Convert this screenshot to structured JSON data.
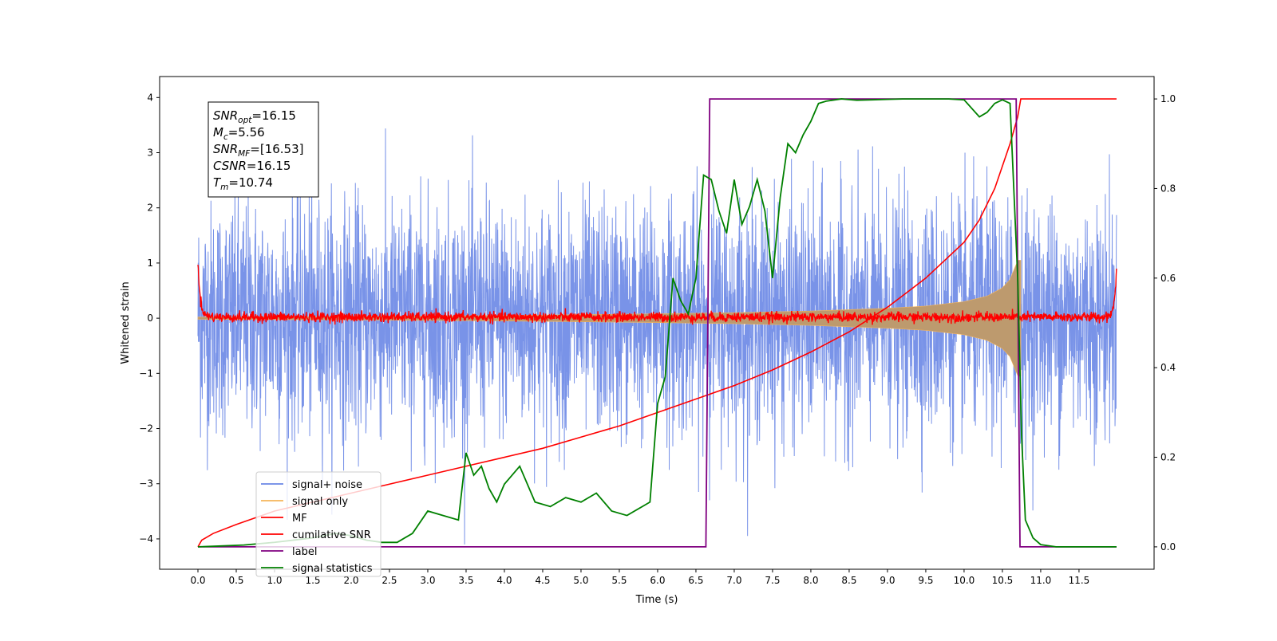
{
  "chart_data": {
    "type": "line",
    "xlabel": "Time (s)",
    "ylabel_left": "Whitened strain",
    "ylabel_right": "",
    "xlim": [
      -0.5,
      12.48
    ],
    "ylim_left": [
      -4.55,
      4.38
    ],
    "ylim_right": [
      -0.05,
      1.05
    ],
    "x_ticks": [
      "0.0",
      "0.5",
      "1.0",
      "1.5",
      "2.0",
      "2.5",
      "3.0",
      "3.5",
      "4.0",
      "4.5",
      "5.0",
      "5.5",
      "6.0",
      "6.5",
      "7.0",
      "7.5",
      "8.0",
      "8.5",
      "9.0",
      "9.5",
      "10.0",
      "10.5",
      "11.0",
      "11.5"
    ],
    "y_ticks_left": [
      "4",
      "3",
      "2",
      "1",
      "0",
      "−1",
      "−2",
      "−3",
      "−4"
    ],
    "y_ticks_right": [
      "1.0",
      "0.8",
      "0.6",
      "0.4",
      "0.2",
      "0.0"
    ],
    "info_box": [
      {
        "var": "SNR",
        "sub": "opt",
        "text": "=16.15"
      },
      {
        "var": "M",
        "sub": "c",
        "text": "=5.56"
      },
      {
        "var": "SNR",
        "sub": "MF",
        "text": "=[16.53]"
      },
      {
        "var": "CSNR",
        "sub": "",
        "text": "=16.15"
      },
      {
        "var": "T",
        "sub": "m",
        "text": "=10.74"
      }
    ],
    "legend": {
      "position": "lower-left",
      "entries": [
        {
          "label": "signal+ noise",
          "color": "#6a87e6"
        },
        {
          "label": "signal only",
          "color": "#f5b45a"
        },
        {
          "label": "MF",
          "color": "#ff0000"
        },
        {
          "label": "cumilative SNR",
          "color": "#ff0000"
        },
        {
          "label": "label",
          "color": "#800080"
        },
        {
          "label": "signal statistics",
          "color": "#008000"
        }
      ]
    },
    "series": [
      {
        "name": "signal+ noise",
        "axis": "left",
        "color": "#6a87e6",
        "description": "white-noise band, approx. amplitude range −4.1 to 3.6",
        "x_range": [
          0.0,
          11.99
        ],
        "range": [
          -4.1,
          3.6
        ]
      },
      {
        "name": "signal only",
        "axis": "left",
        "color": "#f5b45a",
        "description": "chirp envelope growing until merger",
        "envelope_x": [
          0.0,
          2.0,
          4.0,
          6.0,
          7.0,
          8.0,
          9.0,
          9.5,
          10.0,
          10.3,
          10.5,
          10.6,
          10.7,
          10.74
        ],
        "envelope_y": [
          0.02,
          0.03,
          0.05,
          0.08,
          0.1,
          0.13,
          0.18,
          0.22,
          0.3,
          0.4,
          0.55,
          0.7,
          1.05,
          1.05
        ]
      },
      {
        "name": "MF",
        "axis": "left",
        "color": "#ff0000",
        "x": [
          0.0,
          0.02,
          0.05,
          0.1,
          0.2,
          11.8,
          11.9,
          11.95,
          11.98,
          11.99
        ],
        "y": [
          1.0,
          0.5,
          0.2,
          0.05,
          0.02,
          0.02,
          0.05,
          0.2,
          0.6,
          0.95
        ]
      },
      {
        "name": "cumilative SNR",
        "axis": "right",
        "color": "#ff0000",
        "x": [
          0.0,
          0.05,
          0.2,
          0.5,
          1.0,
          1.5,
          2.0,
          2.5,
          3.0,
          3.5,
          4.0,
          4.5,
          5.0,
          5.5,
          6.0,
          6.5,
          7.0,
          7.5,
          8.0,
          8.5,
          9.0,
          9.5,
          10.0,
          10.2,
          10.4,
          10.6,
          10.7,
          10.74,
          10.8,
          11.99
        ],
        "y": [
          0.0,
          0.015,
          0.03,
          0.05,
          0.08,
          0.1,
          0.12,
          0.14,
          0.16,
          0.18,
          0.2,
          0.22,
          0.245,
          0.27,
          0.3,
          0.33,
          0.36,
          0.395,
          0.435,
          0.48,
          0.535,
          0.6,
          0.68,
          0.73,
          0.8,
          0.9,
          0.96,
          1.0,
          1.0,
          1.0
        ]
      },
      {
        "name": "label",
        "axis": "right",
        "color": "#800080",
        "x": [
          0.0,
          6.63,
          6.68,
          10.68,
          10.73,
          11.99
        ],
        "y": [
          0.0,
          0.0,
          1.0,
          1.0,
          0.0,
          0.0
        ]
      },
      {
        "name": "signal statistics",
        "axis": "right",
        "color": "#008000",
        "x": [
          0.0,
          0.3,
          0.6,
          1.0,
          1.5,
          1.8,
          2.0,
          2.2,
          2.4,
          2.6,
          2.8,
          3.0,
          3.2,
          3.4,
          3.5,
          3.6,
          3.7,
          3.8,
          3.9,
          4.0,
          4.2,
          4.4,
          4.6,
          4.8,
          5.0,
          5.2,
          5.4,
          5.6,
          5.8,
          5.9,
          6.0,
          6.1,
          6.2,
          6.3,
          6.4,
          6.5,
          6.6,
          6.7,
          6.8,
          6.9,
          7.0,
          7.1,
          7.2,
          7.3,
          7.4,
          7.5,
          7.6,
          7.7,
          7.8,
          7.9,
          8.0,
          8.1,
          8.2,
          8.4,
          8.6,
          8.8,
          9.0,
          9.2,
          9.4,
          9.6,
          9.8,
          10.0,
          10.2,
          10.3,
          10.4,
          10.5,
          10.6,
          10.7,
          10.75,
          10.8,
          10.9,
          11.0,
          11.2,
          11.5,
          11.99
        ],
        "y": [
          0.0,
          0.002,
          0.004,
          0.01,
          0.02,
          0.03,
          0.025,
          0.015,
          0.01,
          0.01,
          0.03,
          0.08,
          0.07,
          0.06,
          0.21,
          0.16,
          0.18,
          0.13,
          0.1,
          0.14,
          0.18,
          0.1,
          0.09,
          0.11,
          0.1,
          0.12,
          0.08,
          0.07,
          0.09,
          0.1,
          0.32,
          0.38,
          0.6,
          0.55,
          0.52,
          0.6,
          0.83,
          0.82,
          0.75,
          0.7,
          0.82,
          0.72,
          0.76,
          0.82,
          0.75,
          0.6,
          0.78,
          0.9,
          0.88,
          0.92,
          0.95,
          0.99,
          0.995,
          1.0,
          0.997,
          0.998,
          0.999,
          1.0,
          1.0,
          1.0,
          1.0,
          0.998,
          0.96,
          0.97,
          0.99,
          0.998,
          0.99,
          0.6,
          0.25,
          0.06,
          0.02,
          0.005,
          0.0,
          0.0,
          0.0
        ]
      }
    ]
  }
}
